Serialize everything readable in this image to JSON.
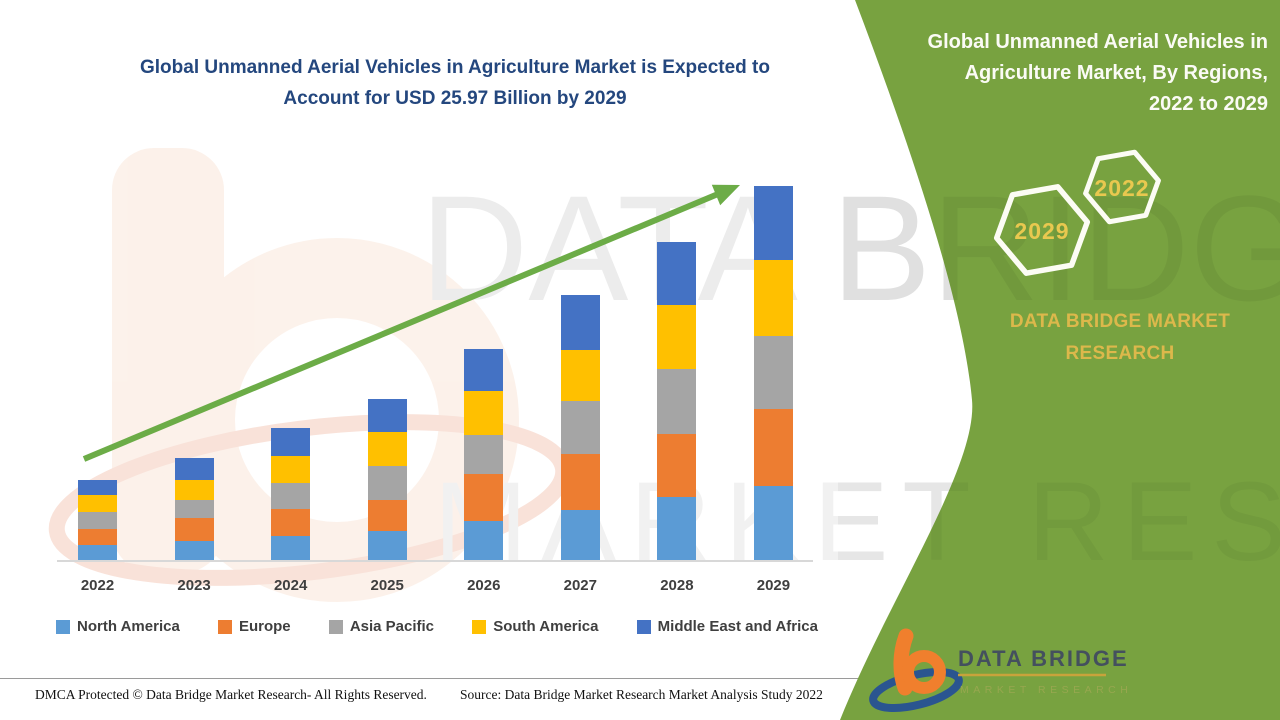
{
  "main": {
    "title_line1": "Global Unmanned Aerial Vehicles in Agriculture Market is Expected to",
    "title_line2": "Account for USD 25.97 Billion by 2029",
    "title_color": "#24477e"
  },
  "chart_data": {
    "type": "bar",
    "stacked": true,
    "title": "Global Unmanned Aerial Vehicles in Agriculture Market is Expected to Account for USD 25.97 Billion by 2029",
    "unit": "USD Billion",
    "values_estimated": true,
    "categories": [
      "2022",
      "2023",
      "2024",
      "2025",
      "2026",
      "2027",
      "2028",
      "2029"
    ],
    "series": [
      {
        "name": "North America",
        "color": "#5B9BD5",
        "values": [
          1.1,
          1.4,
          1.7,
          2.1,
          2.8,
          3.5,
          4.4,
          5.2
        ]
      },
      {
        "name": "Europe",
        "color": "#ED7D31",
        "values": [
          1.1,
          1.6,
          1.9,
          2.1,
          3.2,
          3.9,
          4.4,
          5.3
        ]
      },
      {
        "name": "Asia Pacific",
        "color": "#A5A5A5",
        "values": [
          1.2,
          1.2,
          1.8,
          2.4,
          2.7,
          3.7,
          4.5,
          5.1
        ]
      },
      {
        "name": "South America",
        "color": "#FFC000",
        "values": [
          1.2,
          1.4,
          1.9,
          2.3,
          3.1,
          3.5,
          4.4,
          5.2
        ]
      },
      {
        "name": "Middle East and Africa",
        "color": "#4472C4",
        "values": [
          1.0,
          1.5,
          1.9,
          2.3,
          2.9,
          3.8,
          4.4,
          5.17
        ]
      }
    ],
    "totals_note": "2029 total = 25.97 (headline value); other totals estimated from bar heights",
    "legend_position": "bottom",
    "xlabel": "",
    "ylabel": "",
    "y_axis_shown": false,
    "trend_color": "#6CAC47"
  },
  "watermarks": {
    "row1": "DATA BRIDGE",
    "row2": "MARKET RESEARCH"
  },
  "side_panel": {
    "title_lines": [
      "Global Unmanned Aerial Vehicles in",
      "Agriculture Market, By Regions,",
      "2022 to 2029"
    ],
    "hexagons": [
      {
        "label": "2029"
      },
      {
        "label": "2022"
      }
    ],
    "brand_lines": [
      "DATA BRIDGE MARKET",
      "RESEARCH"
    ],
    "logo": {
      "title": "DATA BRIDGE",
      "subtitle": "MARKET RESEARCH"
    },
    "colors": {
      "background": "#78A240",
      "gold": "#DCB84B",
      "hex_year": "#E9C84F"
    }
  },
  "footer": {
    "left": "DMCA Protected © Data Bridge Market Research- All Rights Reserved.",
    "right": "Source: Data Bridge Market Research Market Analysis Study 2022"
  }
}
